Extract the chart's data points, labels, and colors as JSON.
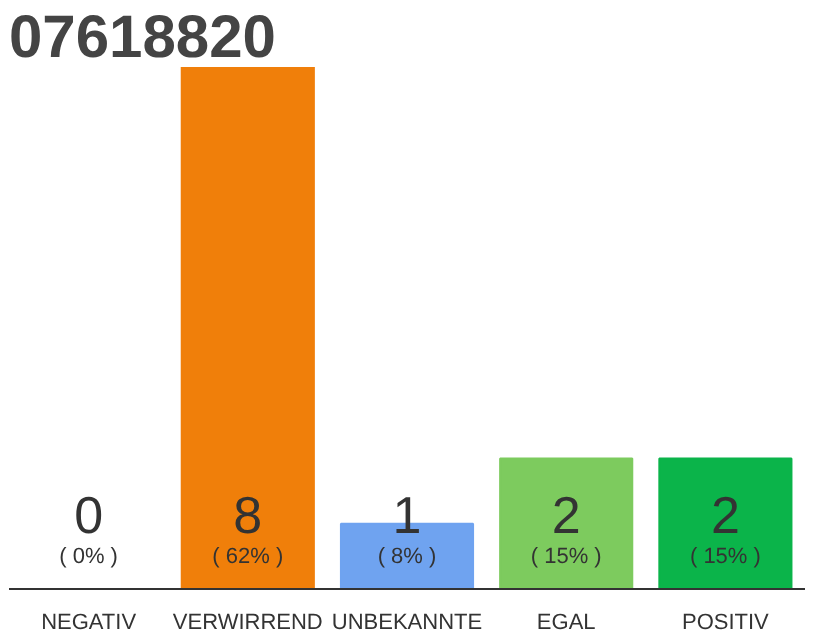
{
  "chart_data": {
    "type": "bar",
    "title": "07618820",
    "categories": [
      "NEGATIV",
      "VERWIRREND",
      "UNBEKANNTE",
      "EGAL",
      "POSITIV"
    ],
    "values": [
      0,
      8,
      1,
      2,
      2
    ],
    "colors": [
      "#a0a0a0",
      "#f07f0a",
      "#6fa3f0",
      "#7dcb5e",
      "#0bb44a"
    ],
    "ylim": [
      0,
      8
    ],
    "value_labels": [
      "0",
      "8",
      "1",
      "2",
      "2"
    ],
    "annotations": [
      "( 0% )",
      "( 62% )",
      "( 8% )",
      "( 15% )",
      "( 15% )"
    ],
    "grid": false
  }
}
